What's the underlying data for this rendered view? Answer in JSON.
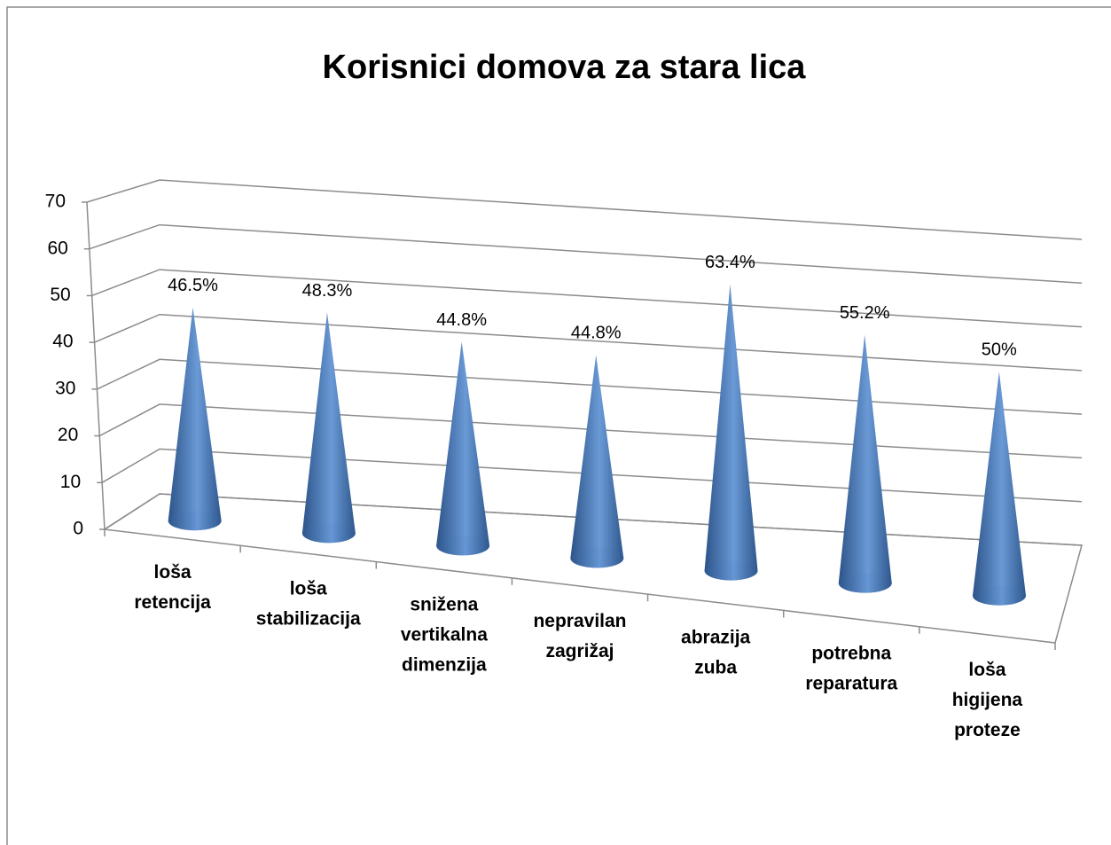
{
  "chart_data": {
    "type": "cone",
    "title": "Korisnici domova za stara lica",
    "categories": [
      "loša retencija",
      "loša stabilizacija",
      "snižena vertikalna dimenzija",
      "nepravilan zagrižaj",
      "abrazija zuba",
      "potrebna reparatura",
      "loša higijena proteze"
    ],
    "values": [
      46.5,
      48.3,
      44.8,
      44.8,
      63.4,
      55.2,
      50
    ],
    "value_labels": [
      "46.5%",
      "48.3%",
      "44.8%",
      "44.8%",
      "63.4%",
      "55.2%",
      "50%"
    ],
    "color": "#4f81bd",
    "ylim": [
      0,
      70
    ],
    "yticks": [
      0,
      10,
      20,
      30,
      40,
      50,
      60,
      70
    ],
    "grid": true
  }
}
